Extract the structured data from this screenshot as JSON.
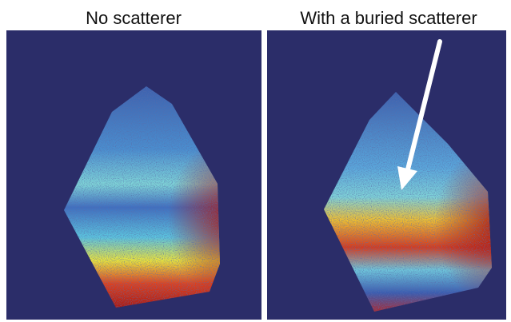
{
  "panels": [
    {
      "title": "No scatterer"
    },
    {
      "title": "With a buried scatterer"
    }
  ]
}
